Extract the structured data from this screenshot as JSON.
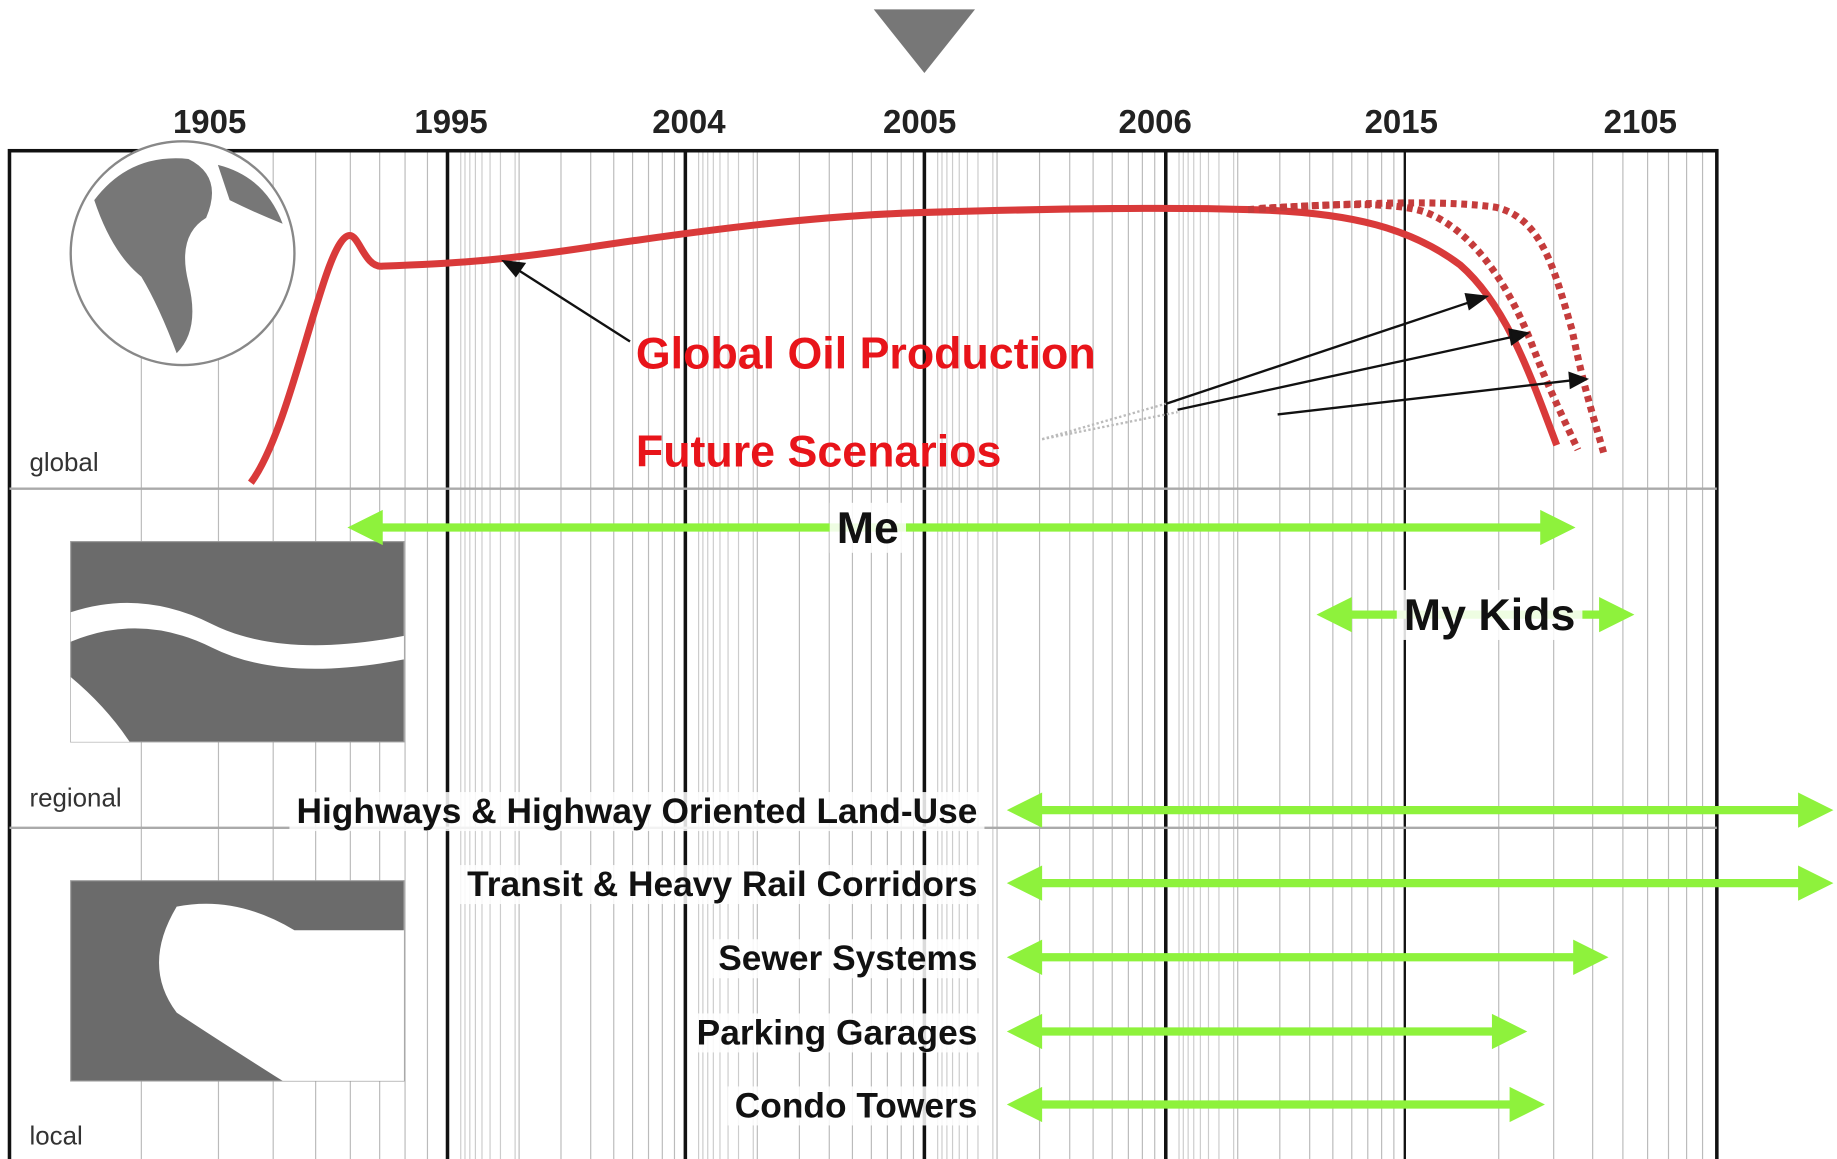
{
  "axis": {
    "years": [
      "1905",
      "1995",
      "2004",
      "2005",
      "2006",
      "2015",
      "2105"
    ]
  },
  "panels": [
    "global",
    "regional",
    "local"
  ],
  "annotations": {
    "oil": "Global Oil Production",
    "scenarios": "Future Scenarios"
  },
  "lifespans": [
    {
      "label": "Me"
    },
    {
      "label": "My Kids"
    }
  ],
  "infrastructure": [
    {
      "label": "Highways & Highway Oriented Land-Use"
    },
    {
      "label": "Transit & Heavy Rail Corridors"
    },
    {
      "label": "Sewer Systems"
    },
    {
      "label": "Parking Garages"
    },
    {
      "label": "Condo Towers"
    }
  ]
}
